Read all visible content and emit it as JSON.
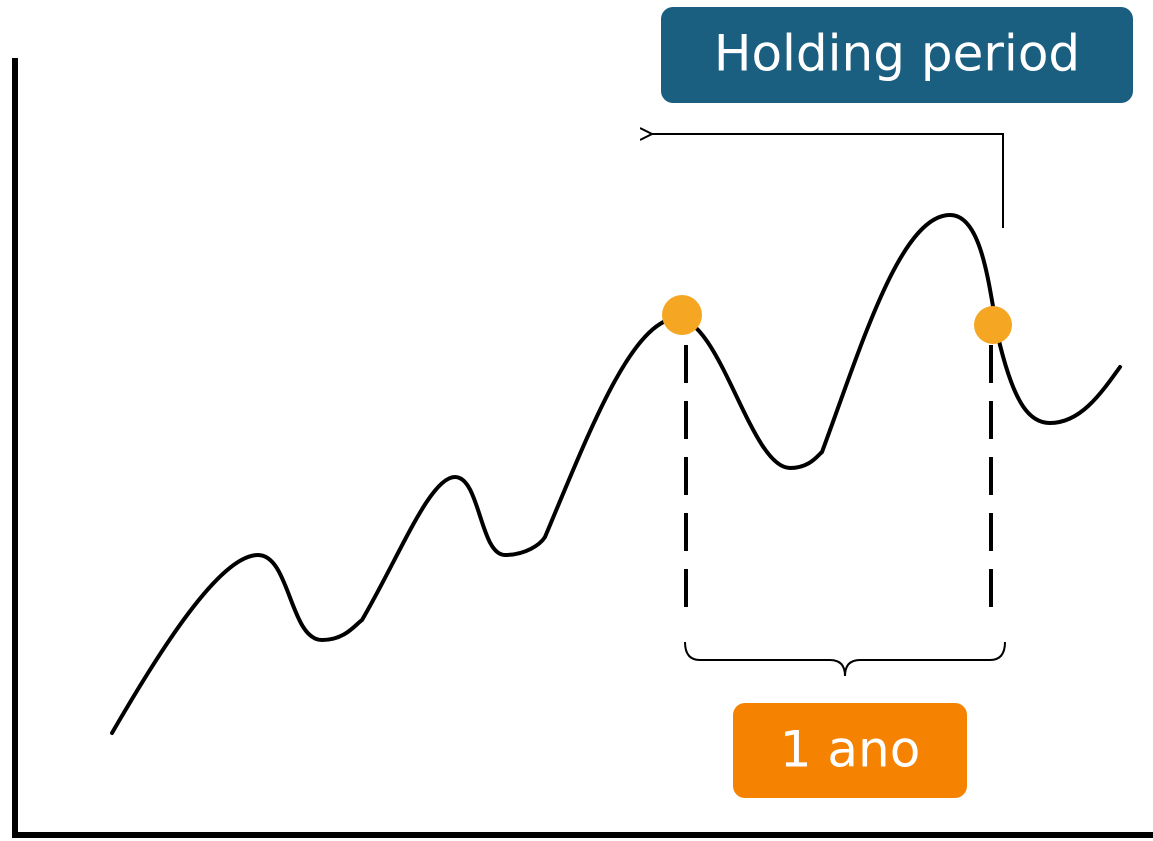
{
  "callout": {
    "text": "Holding period"
  },
  "interval": {
    "label": "1 ano"
  }
}
